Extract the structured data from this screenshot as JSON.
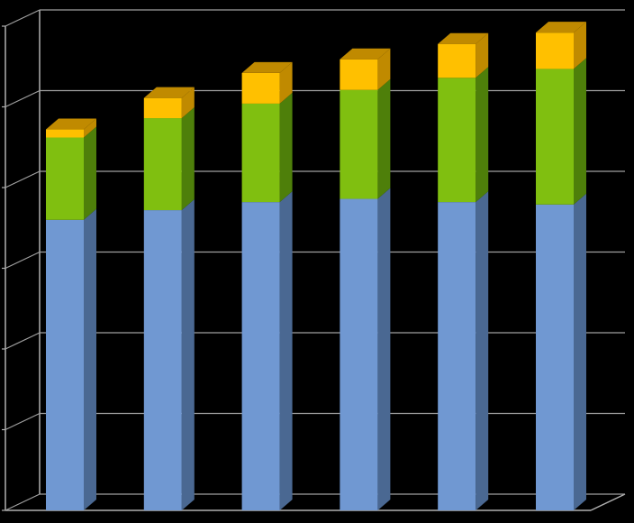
{
  "chart_data": {
    "type": "bar",
    "stacked": true,
    "three_d": true,
    "title": "",
    "xlabel": "",
    "ylabel": "",
    "categories": [
      "",
      "",
      "",
      "",
      "",
      ""
    ],
    "ylim": [
      0,
      6
    ],
    "grid": true,
    "legend": "none",
    "series": [
      {
        "color": "#7098D2",
        "side_color": "#4A6892",
        "values": [
          3.6,
          3.72,
          3.82,
          3.86,
          3.82,
          3.79
        ]
      },
      {
        "color": "#80BF10",
        "side_color": "#4E7F0A",
        "values": [
          1.02,
          1.14,
          1.22,
          1.35,
          1.54,
          1.68
        ]
      },
      {
        "color": "#FFC000",
        "side_color": "#C08A00",
        "values": [
          0.1,
          0.25,
          0.38,
          0.38,
          0.42,
          0.45
        ]
      }
    ],
    "colors": {
      "background": "#000000",
      "gridline": "#A0A0A0",
      "axis": "#B0B0B0"
    }
  }
}
